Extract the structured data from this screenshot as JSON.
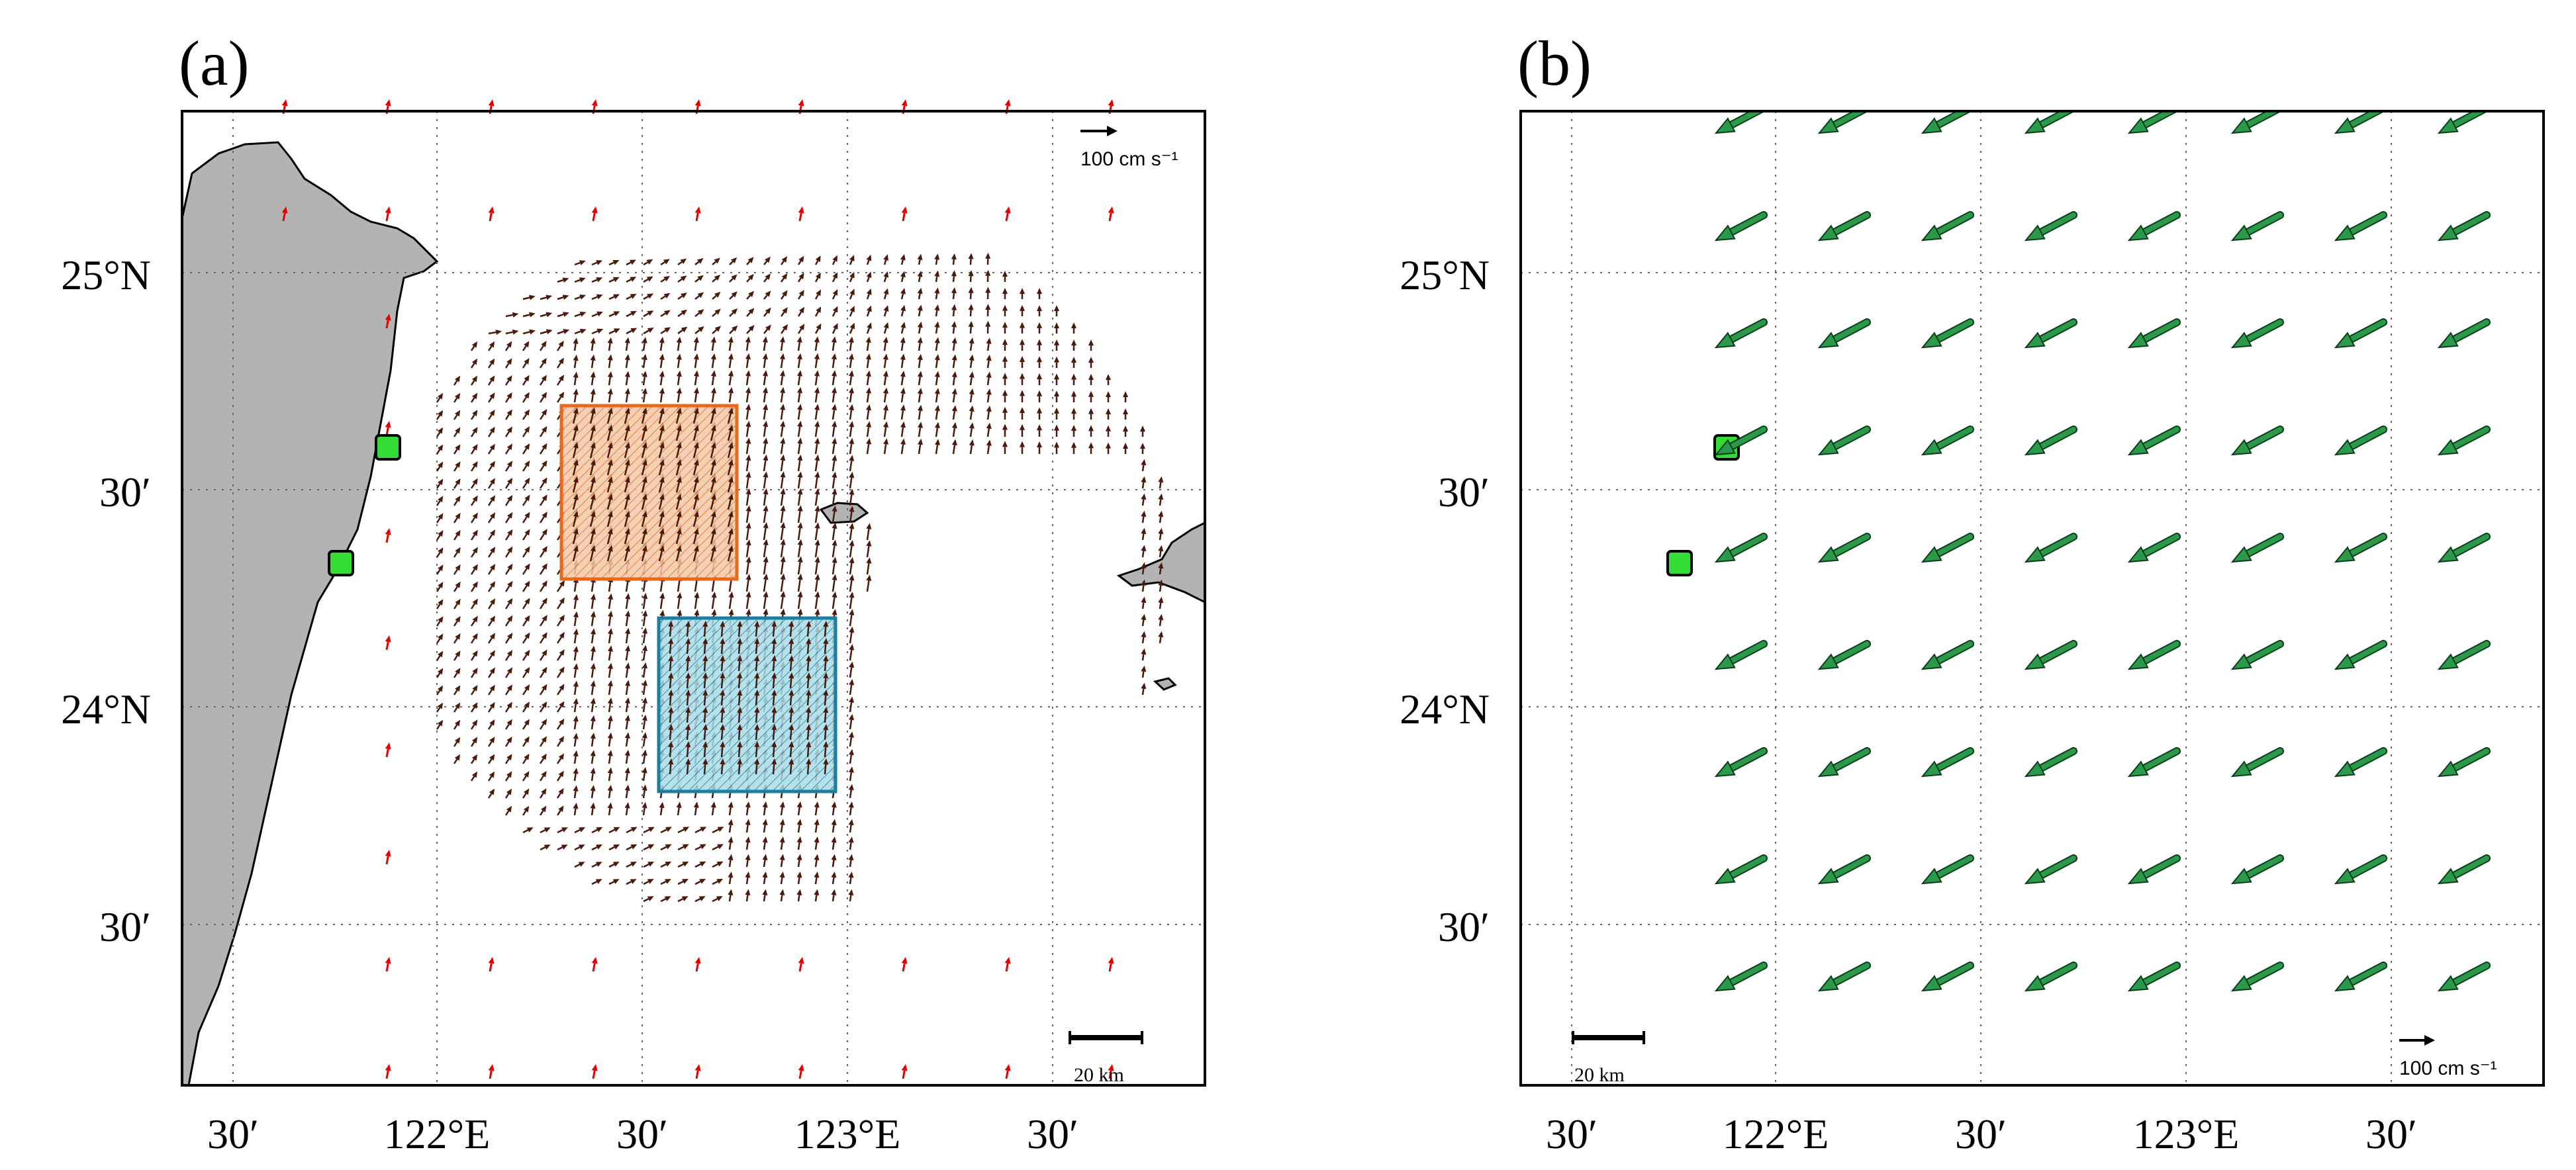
{
  "panels": [
    {
      "id": "a",
      "label": "(a)",
      "reference_vector_label": "100 cm s⁻¹",
      "scale_bar_label": "20 km",
      "lat_labels": [
        "25°N",
        "30′",
        "24°N",
        "30′"
      ],
      "lon_labels": [
        "30′",
        "122°E",
        "30′",
        "123°E",
        "30′"
      ],
      "stations": [
        "station-north",
        "station-south"
      ],
      "boxes": [
        {
          "name": "orange-box",
          "color": "#e8681c",
          "fill": "#f2c9a8"
        },
        {
          "name": "blue-box",
          "color": "#1a7fa0",
          "fill": "#a9dbe6"
        }
      ]
    },
    {
      "id": "b",
      "label": "(b)",
      "reference_vector_label": "100 cm s⁻¹",
      "scale_bar_label": "20 km",
      "lat_labels": [
        "25°N",
        "30′",
        "24°N",
        "30′"
      ],
      "lon_labels": [
        "30′",
        "122°E",
        "30′",
        "123°E",
        "30′"
      ],
      "stations": [
        "station-north",
        "station-south"
      ]
    }
  ],
  "colors": {
    "land": "#b3b3b3",
    "current_vectors": "#4a1a0a",
    "sparse_vectors": "#e60000",
    "wind_vectors": "#2a9a4a",
    "station": "#33dd33"
  }
}
